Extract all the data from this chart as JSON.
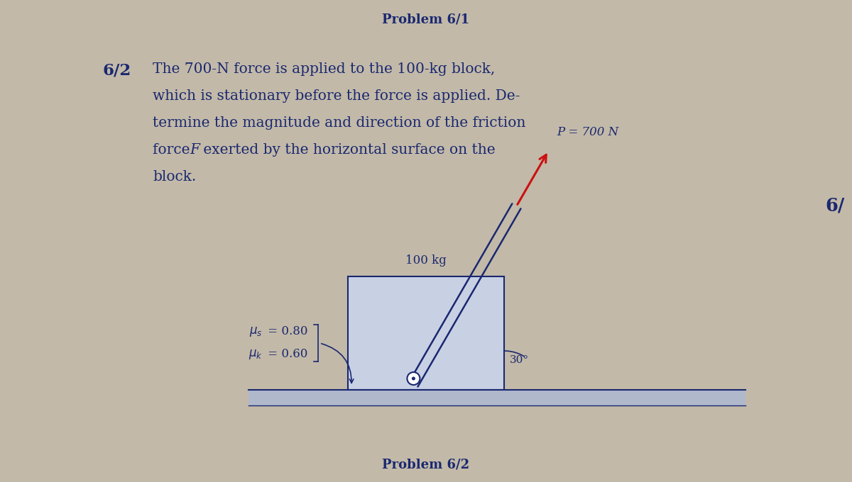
{
  "title_top": "Problem 6/1",
  "title_bottom": "Problem 6/2",
  "side_label": "6/",
  "force_label": "P = 700 N",
  "mass_label": "100 kg",
  "angle_label": "30°",
  "mu_s_text": "μ",
  "mu_s_sub": "s",
  "mu_s_val": " = 0.80",
  "mu_k_text": "μ",
  "mu_k_sub": "k",
  "mu_k_val": " = 0.60",
  "bg_color": "#c2b9a8",
  "text_color": "#1a2870",
  "diagram_fill": "#c8d0e4",
  "diagram_edge": "#1a2870",
  "arrow_color": "#cc1111",
  "ground_fill": "#b0b8cc",
  "title_fontsize": 13,
  "body_fontsize": 14.5,
  "diagram_fontsize": 12
}
